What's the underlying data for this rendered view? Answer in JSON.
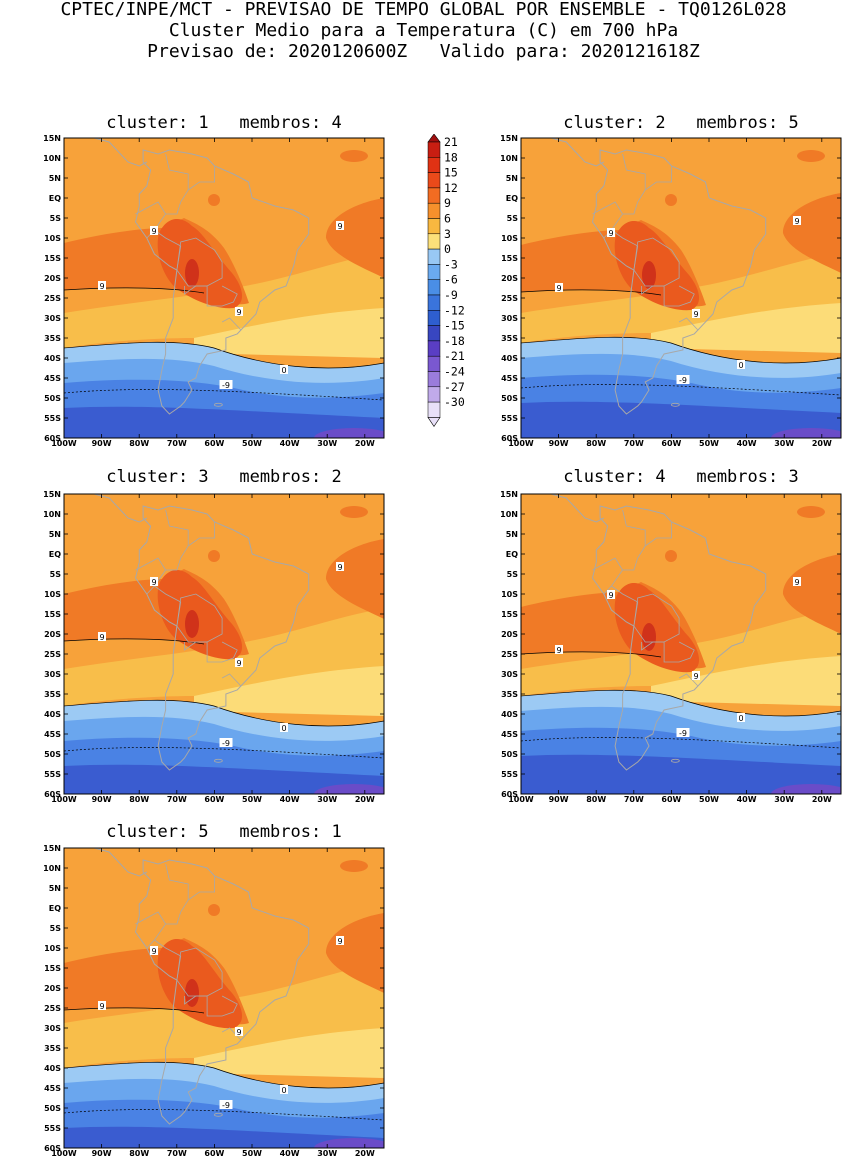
{
  "header": {
    "line1": "CPTEC/INPE/MCT - PREVISAO DE TEMPO GLOBAL POR ENSEMBLE - TQ0126L028",
    "line2": "Cluster Medio para a Temperatura (C) em 700 hPa",
    "line3": "Previsao de: 2020120600Z   Valido para: 2020121618Z"
  },
  "axes": {
    "lat_labels": [
      "15N",
      "10N",
      "5N",
      "EQ",
      "5S",
      "10S",
      "15S",
      "20S",
      "25S",
      "30S",
      "35S",
      "40S",
      "45S",
      "50S",
      "55S",
      "60S"
    ],
    "lon_labels": [
      "100W",
      "90W",
      "80W",
      "70W",
      "60W",
      "50W",
      "40W",
      "30W",
      "20W"
    ]
  },
  "colorbar": {
    "labels": [
      "21",
      "18",
      "15",
      "12",
      "9",
      "6",
      "3",
      "0",
      "-3",
      "-6",
      "-9",
      "-12",
      "-15",
      "-18",
      "-21",
      "-24",
      "-27",
      "-30"
    ],
    "colors": [
      "#a01010",
      "#c81e12",
      "#e03214",
      "#ea4a1a",
      "#f26c22",
      "#f6902c",
      "#f8b840",
      "#fce07a",
      "#98c8f4",
      "#6aaaf0",
      "#4a8ee6",
      "#3a74dc",
      "#2e5ecf",
      "#3846c0",
      "#5a3ec4",
      "#7a58d0",
      "#9a7cdc",
      "#c0aaea",
      "#e8e0f8"
    ]
  },
  "contour_labels": {
    "warm": "9",
    "zero": "0",
    "cold": "-9"
  },
  "panels": [
    {
      "title": "cluster: 1   membros: 4"
    },
    {
      "title": "cluster: 2   membros: 5"
    },
    {
      "title": "cluster: 3   membros: 2"
    },
    {
      "title": "cluster: 4   membros: 3"
    },
    {
      "title": "cluster: 5   membros: 1"
    }
  ]
}
